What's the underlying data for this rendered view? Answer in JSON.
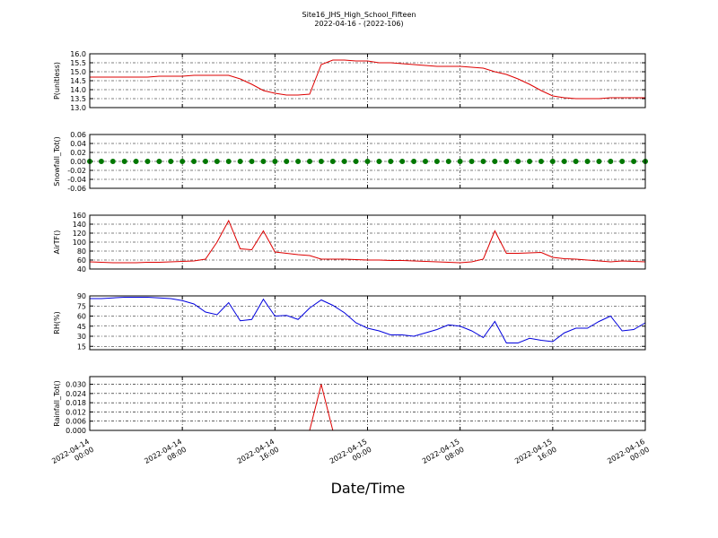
{
  "chart_data": [
    {
      "type": "line",
      "title": "Site16_JHS_High_School_Fifteen",
      "subtitle": "2022-04-16 - (2022-106)",
      "ylabel": "P(unitless)",
      "color": "#dd0000",
      "x": [
        "2022-04-14 00:00",
        "2022-04-14 01:00",
        "2022-04-14 02:00",
        "2022-04-14 03:00",
        "2022-04-14 04:00",
        "2022-04-14 05:00",
        "2022-04-14 06:00",
        "2022-04-14 07:00",
        "2022-04-14 08:00",
        "2022-04-14 09:00",
        "2022-04-14 10:00",
        "2022-04-14 11:00",
        "2022-04-14 12:00",
        "2022-04-14 13:00",
        "2022-04-14 14:00",
        "2022-04-14 15:00",
        "2022-04-14 16:00",
        "2022-04-14 17:00",
        "2022-04-14 18:00",
        "2022-04-14 19:00",
        "2022-04-14 20:00",
        "2022-04-14 21:00",
        "2022-04-14 22:00",
        "2022-04-14 23:00",
        "2022-04-15 00:00",
        "2022-04-15 01:00",
        "2022-04-15 02:00",
        "2022-04-15 03:00",
        "2022-04-15 04:00",
        "2022-04-15 05:00",
        "2022-04-15 06:00",
        "2022-04-15 07:00",
        "2022-04-15 08:00",
        "2022-04-15 09:00",
        "2022-04-15 10:00",
        "2022-04-15 11:00",
        "2022-04-15 12:00",
        "2022-04-15 13:00",
        "2022-04-15 14:00",
        "2022-04-15 15:00",
        "2022-04-15 16:00",
        "2022-04-15 17:00",
        "2022-04-15 18:00",
        "2022-04-15 19:00",
        "2022-04-15 20:00",
        "2022-04-15 21:00",
        "2022-04-15 22:00",
        "2022-04-15 23:00",
        "2022-04-16 00:00"
      ],
      "values": [
        14.7,
        14.7,
        14.7,
        14.7,
        14.7,
        14.7,
        14.75,
        14.75,
        14.75,
        14.8,
        14.8,
        14.8,
        14.8,
        14.6,
        14.3,
        13.95,
        13.8,
        13.7,
        13.7,
        13.75,
        15.4,
        15.65,
        15.65,
        15.6,
        15.6,
        15.5,
        15.5,
        15.45,
        15.4,
        15.35,
        15.3,
        15.3,
        15.3,
        15.25,
        15.2,
        15.0,
        14.85,
        14.6,
        14.3,
        13.95,
        13.65,
        13.55,
        13.5,
        13.5,
        13.5,
        13.55,
        13.55,
        13.55,
        13.55
      ],
      "xlim": [
        "2022-04-14 00:00",
        "2022-04-16 00:00"
      ],
      "xticks": [
        "2022-04-14 00:00",
        "2022-04-14 08:00",
        "2022-04-14 16:00",
        "2022-04-15 00:00",
        "2022-04-15 08:00",
        "2022-04-15 16:00",
        "2022-04-16 00:00"
      ],
      "ylim": [
        13,
        16
      ],
      "yticks": [
        {
          "value": 13,
          "label": "13.0"
        },
        13.5,
        {
          "value": 14,
          "label": "14.0"
        },
        14.5,
        {
          "value": 15,
          "label": "15.0"
        },
        15.5,
        {
          "value": 16,
          "label": "16.0"
        }
      ],
      "grid": true
    },
    {
      "type": "scatter",
      "ylabel": "Snowfall_Tot()",
      "color": "#007700",
      "x": [
        "2022-04-14 00:00",
        "2022-04-14 01:00",
        "2022-04-14 02:00",
        "2022-04-14 03:00",
        "2022-04-14 04:00",
        "2022-04-14 05:00",
        "2022-04-14 06:00",
        "2022-04-14 07:00",
        "2022-04-14 08:00",
        "2022-04-14 09:00",
        "2022-04-14 10:00",
        "2022-04-14 11:00",
        "2022-04-14 12:00",
        "2022-04-14 13:00",
        "2022-04-14 14:00",
        "2022-04-14 15:00",
        "2022-04-14 16:00",
        "2022-04-14 17:00",
        "2022-04-14 18:00",
        "2022-04-14 19:00",
        "2022-04-14 20:00",
        "2022-04-14 21:00",
        "2022-04-14 22:00",
        "2022-04-14 23:00",
        "2022-04-15 00:00",
        "2022-04-15 01:00",
        "2022-04-15 02:00",
        "2022-04-15 03:00",
        "2022-04-15 04:00",
        "2022-04-15 05:00",
        "2022-04-15 06:00",
        "2022-04-15 07:00",
        "2022-04-15 08:00",
        "2022-04-15 09:00",
        "2022-04-15 10:00",
        "2022-04-15 11:00",
        "2022-04-15 12:00",
        "2022-04-15 13:00",
        "2022-04-15 14:00",
        "2022-04-15 15:00",
        "2022-04-15 16:00",
        "2022-04-15 17:00",
        "2022-04-15 18:00",
        "2022-04-15 19:00",
        "2022-04-15 20:00",
        "2022-04-15 21:00",
        "2022-04-15 22:00",
        "2022-04-15 23:00",
        "2022-04-16 00:00"
      ],
      "values": [
        0,
        0,
        0,
        0,
        0,
        0,
        0,
        0,
        0,
        0,
        0,
        0,
        0,
        0,
        0,
        0,
        0,
        0,
        0,
        0,
        0,
        0,
        0,
        0,
        0,
        0,
        0,
        0,
        0,
        0,
        0,
        0,
        0,
        0,
        0,
        0,
        0,
        0,
        0,
        0,
        0,
        0,
        0,
        0,
        0,
        0,
        0,
        0,
        0
      ],
      "xlim": [
        "2022-04-14 00:00",
        "2022-04-16 00:00"
      ],
      "xticks": [
        "2022-04-14 00:00",
        "2022-04-14 08:00",
        "2022-04-14 16:00",
        "2022-04-15 00:00",
        "2022-04-15 08:00",
        "2022-04-15 16:00",
        "2022-04-16 00:00"
      ],
      "ylim": [
        -0.06,
        0.06
      ],
      "yticks": [
        -0.06,
        -0.04,
        -0.02,
        {
          "value": 0,
          "label": "0.00"
        },
        0.02,
        0.04,
        0.06
      ],
      "grid": true
    },
    {
      "type": "line",
      "ylabel": "AirTF()",
      "color": "#dd0000",
      "x": [
        "2022-04-14 00:00",
        "2022-04-14 01:00",
        "2022-04-14 02:00",
        "2022-04-14 03:00",
        "2022-04-14 04:00",
        "2022-04-14 05:00",
        "2022-04-14 06:00",
        "2022-04-14 07:00",
        "2022-04-14 08:00",
        "2022-04-14 09:00",
        "2022-04-14 10:00",
        "2022-04-14 11:00",
        "2022-04-14 12:00",
        "2022-04-14 13:00",
        "2022-04-14 14:00",
        "2022-04-14 15:00",
        "2022-04-14 16:00",
        "2022-04-14 17:00",
        "2022-04-14 18:00",
        "2022-04-14 19:00",
        "2022-04-14 20:00",
        "2022-04-14 21:00",
        "2022-04-14 22:00",
        "2022-04-14 23:00",
        "2022-04-15 00:00",
        "2022-04-15 01:00",
        "2022-04-15 02:00",
        "2022-04-15 03:00",
        "2022-04-15 04:00",
        "2022-04-15 05:00",
        "2022-04-15 06:00",
        "2022-04-15 07:00",
        "2022-04-15 08:00",
        "2022-04-15 09:00",
        "2022-04-15 10:00",
        "2022-04-15 11:00",
        "2022-04-15 12:00",
        "2022-04-15 13:00",
        "2022-04-15 14:00",
        "2022-04-15 15:00",
        "2022-04-15 16:00",
        "2022-04-15 17:00",
        "2022-04-15 18:00",
        "2022-04-15 19:00",
        "2022-04-15 20:00",
        "2022-04-15 21:00",
        "2022-04-15 22:00",
        "2022-04-15 23:00",
        "2022-04-16 00:00"
      ],
      "values": [
        56,
        55,
        54,
        54,
        54,
        55,
        55,
        56,
        57,
        58,
        62,
        100,
        148,
        85,
        83,
        125,
        78,
        75,
        72,
        70,
        62,
        62,
        62,
        61,
        60,
        60,
        59,
        59,
        58,
        57,
        56,
        55,
        54,
        56,
        62,
        125,
        75,
        75,
        76,
        77,
        66,
        63,
        62,
        60,
        58,
        56,
        58,
        57,
        56
      ],
      "xlim": [
        "2022-04-14 00:00",
        "2022-04-16 00:00"
      ],
      "xticks": [
        "2022-04-14 00:00",
        "2022-04-14 08:00",
        "2022-04-14 16:00",
        "2022-04-15 00:00",
        "2022-04-15 08:00",
        "2022-04-15 16:00",
        "2022-04-16 00:00"
      ],
      "ylim": [
        40,
        160
      ],
      "yticks": [
        40,
        60,
        80,
        100,
        120,
        140,
        160
      ],
      "grid": true
    },
    {
      "type": "line",
      "ylabel": "RH(%)",
      "color": "#0000dd",
      "x": [
        "2022-04-14 00:00",
        "2022-04-14 01:00",
        "2022-04-14 02:00",
        "2022-04-14 03:00",
        "2022-04-14 04:00",
        "2022-04-14 05:00",
        "2022-04-14 06:00",
        "2022-04-14 07:00",
        "2022-04-14 08:00",
        "2022-04-14 09:00",
        "2022-04-14 10:00",
        "2022-04-14 11:00",
        "2022-04-14 12:00",
        "2022-04-14 13:00",
        "2022-04-14 14:00",
        "2022-04-14 15:00",
        "2022-04-14 16:00",
        "2022-04-14 17:00",
        "2022-04-14 18:00",
        "2022-04-14 19:00",
        "2022-04-14 20:00",
        "2022-04-14 21:00",
        "2022-04-14 22:00",
        "2022-04-14 23:00",
        "2022-04-15 00:00",
        "2022-04-15 01:00",
        "2022-04-15 02:00",
        "2022-04-15 03:00",
        "2022-04-15 04:00",
        "2022-04-15 05:00",
        "2022-04-15 06:00",
        "2022-04-15 07:00",
        "2022-04-15 08:00",
        "2022-04-15 09:00",
        "2022-04-15 10:00",
        "2022-04-15 11:00",
        "2022-04-15 12:00",
        "2022-04-15 13:00",
        "2022-04-15 14:00",
        "2022-04-15 15:00",
        "2022-04-15 16:00",
        "2022-04-15 17:00",
        "2022-04-15 18:00",
        "2022-04-15 19:00",
        "2022-04-15 20:00",
        "2022-04-15 21:00",
        "2022-04-15 22:00",
        "2022-04-15 23:00",
        "2022-04-16 00:00"
      ],
      "values": [
        86,
        86,
        87,
        88,
        88,
        88,
        87,
        86,
        83,
        78,
        66,
        62,
        80,
        53,
        55,
        85,
        60,
        61,
        55,
        72,
        84,
        76,
        65,
        50,
        42,
        38,
        32,
        32,
        30,
        35,
        40,
        47,
        45,
        38,
        28,
        52,
        20,
        20,
        27,
        24,
        22,
        35,
        42,
        42,
        52,
        60,
        38,
        40,
        50
      ],
      "xlim": [
        "2022-04-14 00:00",
        "2022-04-16 00:00"
      ],
      "xticks": [
        "2022-04-14 00:00",
        "2022-04-14 08:00",
        "2022-04-14 16:00",
        "2022-04-15 00:00",
        "2022-04-15 08:00",
        "2022-04-15 16:00",
        "2022-04-16 00:00"
      ],
      "ylim": [
        10,
        90
      ],
      "yticks": [
        15,
        30,
        45,
        60,
        75,
        90
      ],
      "grid": true
    },
    {
      "type": "line",
      "ylabel": "Rainfall_Tot()",
      "xlabel": "Date/Time",
      "color": "#dd0000",
      "x": [
        "2022-04-14 00:00",
        "2022-04-14 01:00",
        "2022-04-14 02:00",
        "2022-04-14 03:00",
        "2022-04-14 04:00",
        "2022-04-14 05:00",
        "2022-04-14 06:00",
        "2022-04-14 07:00",
        "2022-04-14 08:00",
        "2022-04-14 09:00",
        "2022-04-14 10:00",
        "2022-04-14 11:00",
        "2022-04-14 12:00",
        "2022-04-14 13:00",
        "2022-04-14 14:00",
        "2022-04-14 15:00",
        "2022-04-14 16:00",
        "2022-04-14 17:00",
        "2022-04-14 18:00",
        "2022-04-14 19:00",
        "2022-04-14 20:00",
        "2022-04-14 21:00",
        "2022-04-14 22:00",
        "2022-04-14 23:00",
        "2022-04-15 00:00",
        "2022-04-15 01:00",
        "2022-04-15 02:00",
        "2022-04-15 03:00",
        "2022-04-15 04:00",
        "2022-04-15 05:00",
        "2022-04-15 06:00",
        "2022-04-15 07:00",
        "2022-04-15 08:00",
        "2022-04-15 09:00",
        "2022-04-15 10:00",
        "2022-04-15 11:00",
        "2022-04-15 12:00",
        "2022-04-15 13:00",
        "2022-04-15 14:00",
        "2022-04-15 15:00",
        "2022-04-15 16:00",
        "2022-04-15 17:00",
        "2022-04-15 18:00",
        "2022-04-15 19:00",
        "2022-04-15 20:00",
        "2022-04-15 21:00",
        "2022-04-15 22:00",
        "2022-04-15 23:00",
        "2022-04-16 00:00"
      ],
      "values": [
        0,
        0,
        0,
        0,
        0,
        0,
        0,
        0,
        0,
        0,
        0,
        0,
        0,
        0,
        0,
        0,
        0,
        0,
        0,
        0,
        0.03,
        0,
        0,
        0,
        0,
        0,
        0,
        0,
        0,
        0,
        0,
        0,
        0,
        0,
        0,
        0,
        0,
        0,
        0,
        0,
        0,
        0,
        0,
        0,
        0,
        0,
        0,
        0,
        0
      ],
      "xlim": [
        "2022-04-14 00:00",
        "2022-04-16 00:00"
      ],
      "xticks": [
        "2022-04-14 00:00",
        "2022-04-14 08:00",
        "2022-04-14 16:00",
        "2022-04-15 00:00",
        "2022-04-15 08:00",
        "2022-04-15 16:00",
        "2022-04-16 00:00"
      ],
      "ylim": [
        0,
        0.035
      ],
      "yticks": [
        {
          "value": 0,
          "label": "0.000"
        },
        0.006,
        0.012,
        0.018,
        0.024,
        {
          "value": 0.03,
          "label": "0.030"
        }
      ],
      "grid": true
    }
  ]
}
